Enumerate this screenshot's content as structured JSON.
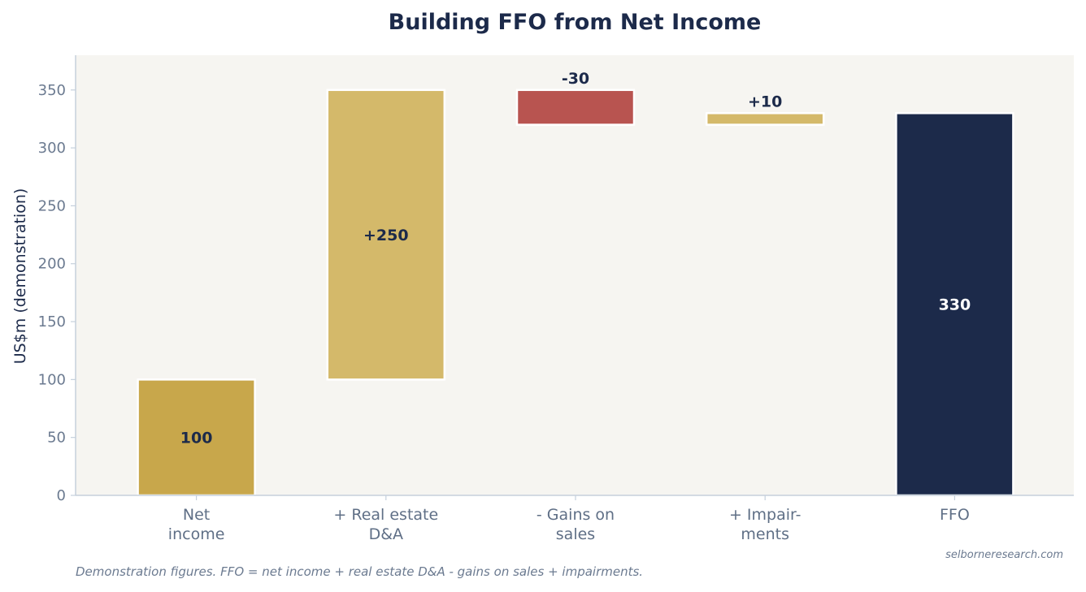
{
  "chart_data": {
    "type": "bar",
    "subtype": "waterfall",
    "title": "Building FFO from Net Income",
    "ylabel": "US$m (demonstration)",
    "xlabel": "",
    "ylim": [
      0,
      380
    ],
    "yticks": [
      0,
      50,
      100,
      150,
      200,
      250,
      300,
      350
    ],
    "grid": false,
    "categories": [
      [
        "Net",
        "income"
      ],
      [
        "+ Real estate",
        "D&A"
      ],
      [
        "- Gains on",
        "sales"
      ],
      [
        "+ Impair-",
        "ments"
      ],
      [
        "FFO"
      ]
    ],
    "bars": [
      {
        "base": 0,
        "top": 100,
        "label": "100",
        "kind": "total"
      },
      {
        "base": 100,
        "top": 350,
        "label": "+250",
        "kind": "increase"
      },
      {
        "base": 320,
        "top": 350,
        "label": "-30",
        "kind": "decrease"
      },
      {
        "base": 320,
        "top": 330,
        "label": "+10",
        "kind": "increase"
      },
      {
        "base": 0,
        "top": 330,
        "label": "330",
        "kind": "result"
      }
    ],
    "colors": {
      "total": "#c8a74b",
      "increase": "#d4b96a",
      "decrease": "#b85450",
      "result": "#1c2a4a",
      "plot_bg": "#f6f5f1",
      "axis": "#c5d0dc"
    },
    "footnote": "Demonstration figures. FFO = net income + real estate D&A - gains on sales + impairments.",
    "source": "selborneresearch.com"
  }
}
